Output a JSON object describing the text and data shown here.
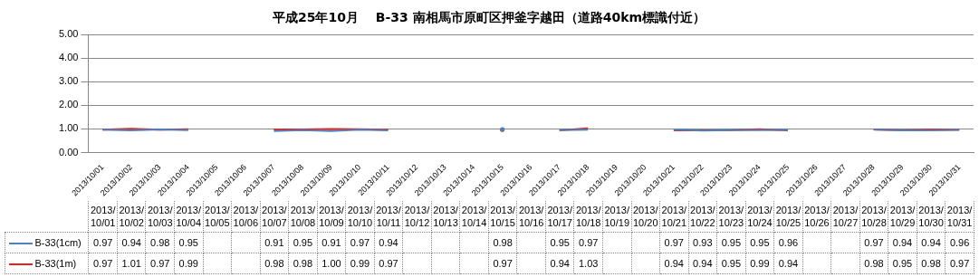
{
  "chart_data": {
    "type": "line",
    "title": "平成25年10月　 B-33 南相馬市原町区押釜字越田（道路40km標識付近）",
    "categories": [
      "2013/10/01",
      "2013/10/02",
      "2013/10/03",
      "2013/10/04",
      "2013/10/05",
      "2013/10/06",
      "2013/10/07",
      "2013/10/08",
      "2013/10/09",
      "2013/10/10",
      "2013/10/11",
      "2013/10/12",
      "2013/10/13",
      "2013/10/14",
      "2013/10/15",
      "2013/10/16",
      "2013/10/17",
      "2013/10/18",
      "2013/10/19",
      "2013/10/20",
      "2013/10/21",
      "2013/10/22",
      "2013/10/23",
      "2013/10/24",
      "2013/10/25",
      "2013/10/26",
      "2013/10/27",
      "2013/10/28",
      "2013/10/29",
      "2013/10/30",
      "2013/10/31"
    ],
    "series": [
      {
        "name": "B-33(1cm)",
        "color": "#4f81bd",
        "values": [
          0.97,
          0.94,
          0.98,
          0.95,
          null,
          null,
          0.91,
          0.95,
          0.91,
          0.97,
          0.94,
          null,
          null,
          null,
          0.98,
          null,
          0.95,
          0.97,
          null,
          null,
          0.97,
          0.93,
          0.95,
          0.95,
          0.96,
          null,
          null,
          0.97,
          0.94,
          0.94,
          0.96
        ],
        "value_labels": [
          "0.97",
          "0.94",
          "0.98",
          "0.95",
          null,
          null,
          "0.91",
          "0.95",
          "0.91",
          "0.97",
          "0.94",
          null,
          null,
          null,
          "0.98",
          null,
          "0.95",
          "0.97",
          null,
          null,
          "0.97",
          "0.93",
          "0.95",
          "0.95",
          "0.96",
          null,
          null,
          "0.97",
          "0.94",
          "0.94",
          "0.96"
        ]
      },
      {
        "name": "B-33(1m)",
        "color": "#e0231c",
        "values": [
          0.97,
          1.01,
          0.97,
          0.99,
          null,
          null,
          0.98,
          0.98,
          1.0,
          0.99,
          0.97,
          null,
          null,
          null,
          0.97,
          null,
          0.94,
          1.03,
          null,
          null,
          0.94,
          0.94,
          0.95,
          0.99,
          0.94,
          null,
          null,
          0.98,
          0.95,
          0.98,
          0.97
        ],
        "value_labels": [
          "0.97",
          "1.01",
          "0.97",
          "0.99",
          null,
          null,
          "0.98",
          "0.98",
          "1.00",
          "0.99",
          "0.97",
          null,
          null,
          null,
          "0.97",
          null,
          "0.94",
          "1.03",
          null,
          null,
          "0.94",
          "0.94",
          "0.95",
          "0.99",
          "0.94",
          null,
          null,
          "0.98",
          "0.95",
          "0.98",
          "0.97"
        ]
      }
    ],
    "ylim": [
      0,
      5
    ],
    "yticks": [
      {
        "value": 0,
        "label": "0.00"
      },
      {
        "value": 1,
        "label": "1.00"
      },
      {
        "value": 2,
        "label": "2.00"
      },
      {
        "value": 3,
        "label": "3.00"
      },
      {
        "value": 4,
        "label": "4.00"
      },
      {
        "value": 5,
        "label": "5.00"
      }
    ],
    "grid": "y",
    "legend": "bottom left",
    "marker": "none",
    "line_style": "solid"
  }
}
